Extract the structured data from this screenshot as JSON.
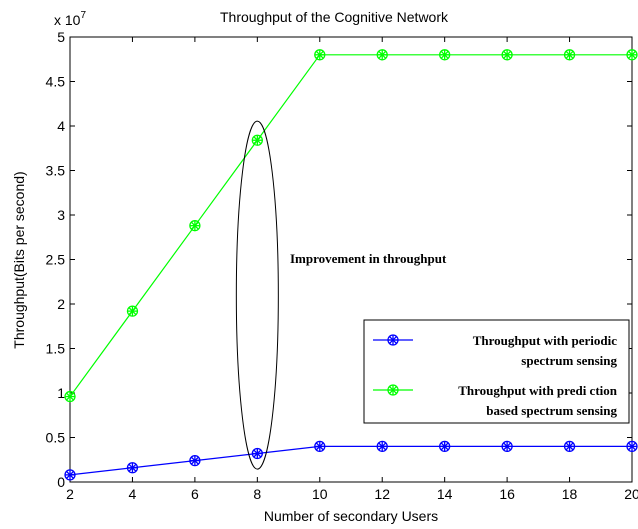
{
  "chart_data": {
    "type": "line",
    "title": "Throughput of the Cognitive Network",
    "xlabel": "Number of secondary Users",
    "ylabel": "Throughput(Bits per second)",
    "y_multiplier_label": "x 10",
    "y_multiplier_exponent": "7",
    "xlim": [
      2,
      20
    ],
    "ylim": [
      0,
      5
    ],
    "x_ticks": [
      2,
      4,
      6,
      8,
      10,
      12,
      14,
      16,
      18,
      20
    ],
    "y_ticks": [
      0,
      0.5,
      1,
      1.5,
      2,
      2.5,
      3,
      3.5,
      4,
      4.5,
      5
    ],
    "x_tick_labels": [
      "2",
      "4",
      "6",
      "8",
      "10",
      "12",
      "14",
      "16",
      "18",
      "20"
    ],
    "y_tick_labels": [
      "0",
      "0.5",
      "1",
      "1.5",
      "2",
      "2.5",
      "3",
      "3.5",
      "4",
      "4.5",
      "5"
    ],
    "grid": false,
    "legend_position": "lower-right",
    "x": [
      2,
      4,
      6,
      8,
      10,
      12,
      14,
      16,
      18,
      20
    ],
    "series": [
      {
        "name": "Throughput with periodic spectrum sensing",
        "legend_lines": [
          "Throughput with periodic",
          "spectrum sensing"
        ],
        "color": "#0000ff",
        "values": [
          0.08,
          0.16,
          0.24,
          0.32,
          0.4,
          0.4,
          0.4,
          0.4,
          0.4,
          0.4
        ]
      },
      {
        "name": "Throughput with prediction based spectrum sensing",
        "legend_lines": [
          "Throughput with predi ction",
          "based spectrum sensing"
        ],
        "color": "#00ff00",
        "values": [
          0.96,
          1.92,
          2.88,
          3.84,
          4.8,
          4.8,
          4.8,
          4.8,
          4.8,
          4.8
        ]
      }
    ],
    "annotation": {
      "text": "Improvement in throughput",
      "ellipse_center": [
        8,
        2.1
      ]
    }
  }
}
